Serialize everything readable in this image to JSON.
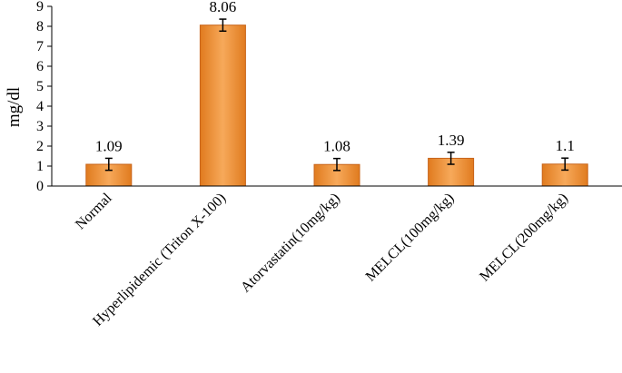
{
  "chart_data": {
    "type": "bar",
    "categories": [
      "Normal",
      "Hyperlipidemic (Triton X-100)",
      "Atorvastatin(10mg/kg)",
      "MELCL(100mg/kg)",
      "MELCL(200mg/kg)"
    ],
    "values": [
      1.09,
      8.06,
      1.08,
      1.39,
      1.1
    ],
    "value_labels": [
      "1.09",
      "8.06",
      "1.08",
      "1.39",
      "1.1"
    ],
    "error": [
      0.3,
      0.3,
      0.3,
      0.3,
      0.3
    ],
    "ylabel": "mg/dl",
    "xlabel": "",
    "title": "",
    "ylim": [
      0,
      9
    ],
    "yticks": [
      0,
      1,
      2,
      3,
      4,
      5,
      6,
      7,
      8,
      9
    ],
    "grid": false,
    "legend": "none",
    "colors": {
      "bar_fill_light": "#f7a95a",
      "bar_fill_dark": "#e07b1f",
      "bar_stroke": "#c8641a",
      "axis": "#000000"
    }
  }
}
